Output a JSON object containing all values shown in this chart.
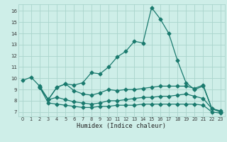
{
  "title": "",
  "xlabel": "Humidex (Indice chaleur)",
  "bg_color": "#ceeee8",
  "grid_color": "#aad4cc",
  "line_color": "#1a7a6e",
  "xlim": [
    -0.5,
    23.5
  ],
  "ylim": [
    6.6,
    16.6
  ],
  "xticks": [
    0,
    1,
    2,
    3,
    4,
    5,
    6,
    7,
    8,
    9,
    10,
    11,
    12,
    13,
    14,
    15,
    16,
    17,
    18,
    19,
    20,
    21,
    22,
    23
  ],
  "yticks": [
    7,
    8,
    9,
    10,
    11,
    12,
    13,
    14,
    15,
    16
  ],
  "line1_x": [
    0,
    1,
    2,
    3,
    4,
    5,
    6,
    7,
    8,
    9,
    10,
    11,
    12,
    13,
    14,
    15,
    16,
    17,
    18,
    19,
    20,
    21,
    22,
    23
  ],
  "line1_y": [
    9.8,
    10.1,
    9.3,
    8.1,
    9.2,
    9.5,
    9.4,
    9.6,
    10.5,
    10.4,
    11.0,
    11.9,
    12.4,
    13.3,
    13.15,
    16.3,
    15.3,
    14.0,
    11.6,
    9.6,
    9.0,
    9.3,
    7.3,
    7.1
  ],
  "line2_x": [
    2,
    3,
    4,
    5,
    6,
    7,
    8,
    9,
    10,
    11,
    12,
    13,
    14,
    15,
    16,
    17,
    18,
    19,
    20,
    21,
    22,
    23
  ],
  "line2_y": [
    9.2,
    8.1,
    9.2,
    9.5,
    8.9,
    8.6,
    8.5,
    8.7,
    9.0,
    8.9,
    9.0,
    9.0,
    9.1,
    9.2,
    9.3,
    9.3,
    9.3,
    9.3,
    9.1,
    9.4,
    7.3,
    7.0
  ],
  "line3_x": [
    2,
    3,
    4,
    5,
    6,
    7,
    8,
    9,
    10,
    11,
    12,
    13,
    14,
    15,
    16,
    17,
    18,
    19,
    20,
    21,
    22,
    23
  ],
  "line3_y": [
    9.2,
    8.1,
    8.3,
    8.1,
    7.9,
    7.8,
    7.7,
    7.8,
    8.0,
    8.0,
    8.1,
    8.2,
    8.3,
    8.3,
    8.4,
    8.4,
    8.5,
    8.6,
    8.4,
    8.2,
    7.3,
    7.0
  ],
  "line4_x": [
    2,
    3,
    4,
    5,
    6,
    7,
    8,
    9,
    10,
    11,
    12,
    13,
    14,
    15,
    16,
    17,
    18,
    19,
    20,
    21,
    22,
    23
  ],
  "line4_y": [
    9.2,
    7.8,
    7.7,
    7.6,
    7.5,
    7.4,
    7.4,
    7.5,
    7.5,
    7.6,
    7.6,
    7.6,
    7.7,
    7.7,
    7.7,
    7.7,
    7.7,
    7.7,
    7.7,
    7.6,
    7.0,
    6.9
  ]
}
